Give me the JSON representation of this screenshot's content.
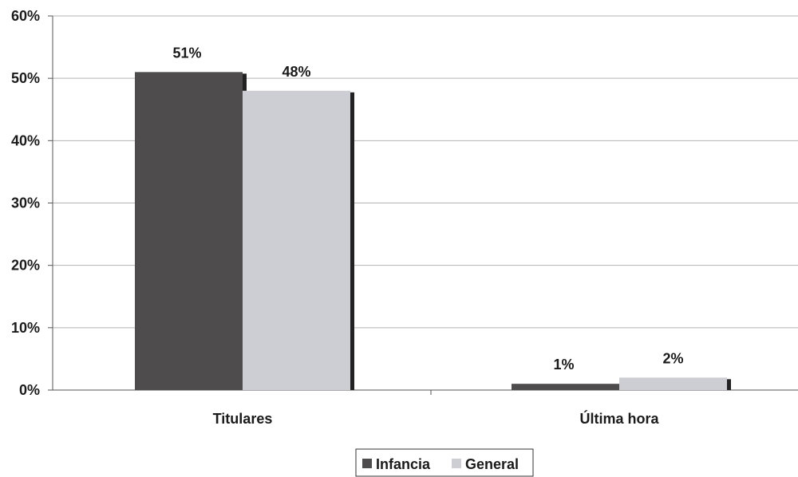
{
  "chart_data": {
    "type": "bar",
    "categories": [
      "Titulares",
      "Última hora"
    ],
    "series": [
      {
        "name": "Infancia",
        "values": [
          51,
          1
        ],
        "labels": [
          "51%",
          "1%"
        ],
        "color": "#4f4c4d"
      },
      {
        "name": "General",
        "values": [
          48,
          2
        ],
        "labels": [
          "48%",
          "2%"
        ],
        "color": "#cdced3"
      }
    ],
    "title": "",
    "xlabel": "",
    "ylabel": "",
    "ylim": [
      0,
      60
    ],
    "yticks": [
      0,
      10,
      20,
      30,
      40,
      50,
      60
    ],
    "ytick_labels": [
      "0%",
      "10%",
      "20%",
      "30%",
      "40%",
      "50%",
      "60%"
    ],
    "grid": true,
    "legend": "bottom-center",
    "colors": {
      "shadow": "#222222",
      "grid": "#b3b3b3",
      "axis": "#555555"
    }
  }
}
